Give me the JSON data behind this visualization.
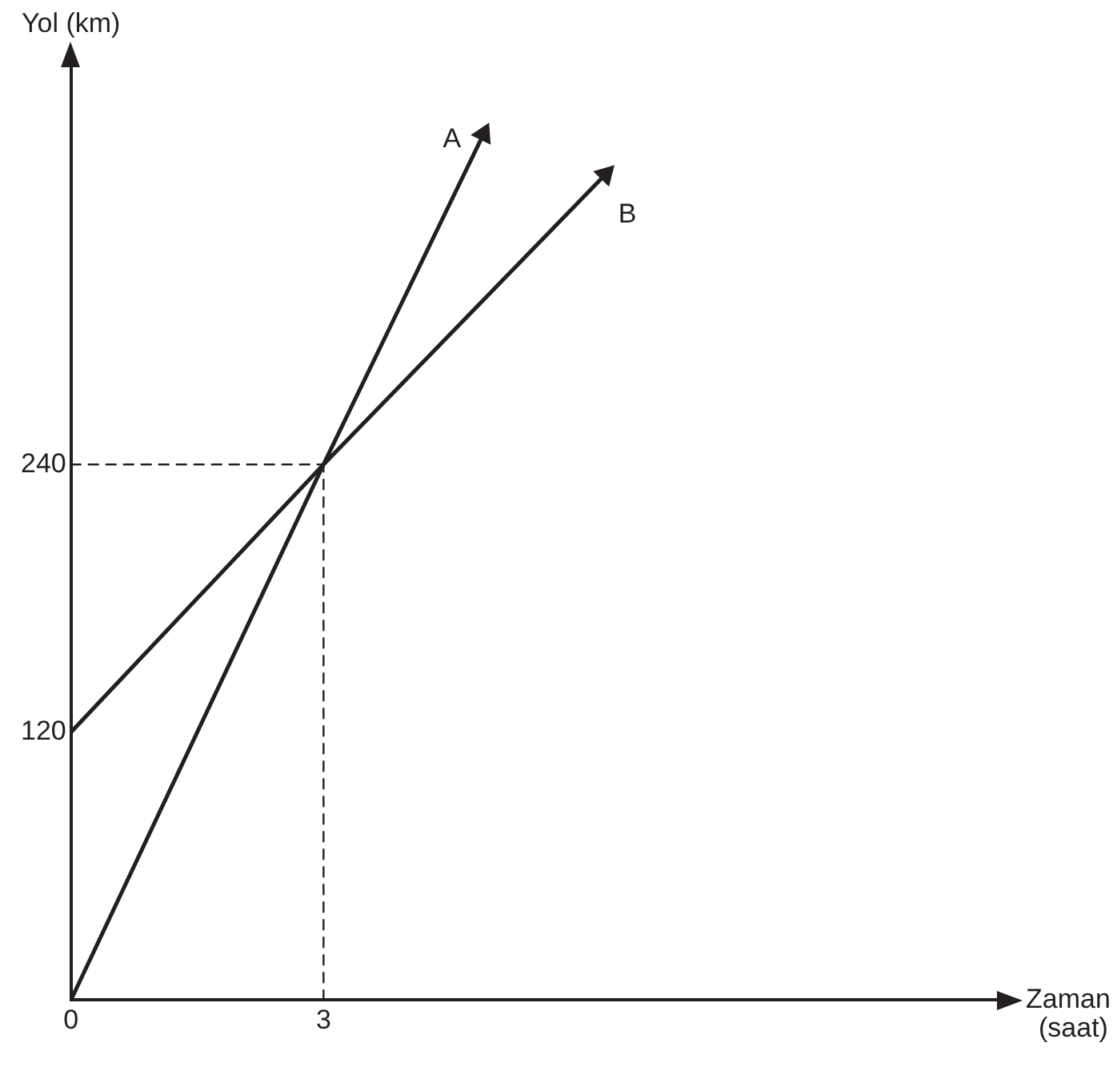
{
  "chart_data": {
    "type": "line",
    "xlabel": "Zaman (saat)",
    "ylabel": "Yol (km)",
    "series": [
      {
        "name": "A",
        "color": "#231f20",
        "x": [
          0,
          3,
          4.9
        ],
        "values": [
          0,
          240,
          388
        ]
      },
      {
        "name": "B",
        "color": "#231f20",
        "x": [
          0,
          3,
          6.35
        ],
        "values": [
          120,
          240,
          370
        ]
      },
      {
        "color": "#231f20",
        "x": [
          0,
          3
        ],
        "values": [
          240,
          240
        ],
        "line_style": "dashed"
      },
      {
        "color": "#231f20",
        "x": [
          3,
          3
        ],
        "values": [
          0,
          240
        ],
        "line_style": "dashed"
      }
    ],
    "xlim": [
      0,
      11
    ],
    "ylim": [
      0,
      418
    ],
    "xticks": [
      0,
      3
    ],
    "yticks": [
      120,
      240
    ],
    "grid": false,
    "marker": "none",
    "line_style": "solid"
  }
}
